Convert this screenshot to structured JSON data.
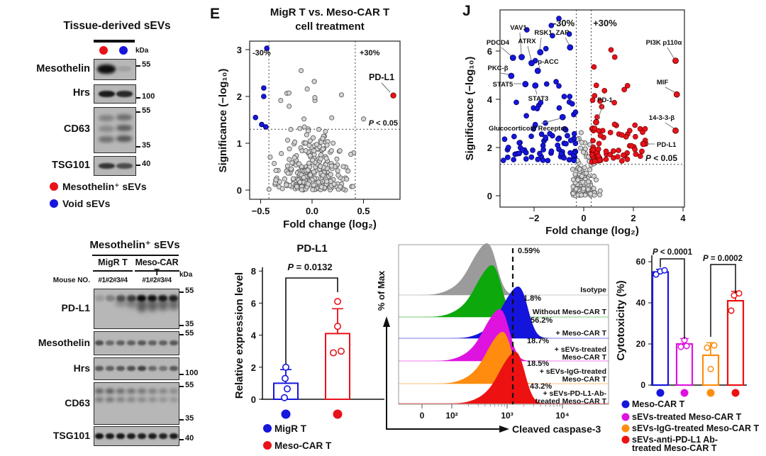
{
  "colors": {
    "red": "#e8121a",
    "blue": "#1616dd",
    "magenta": "#df13df",
    "orange": "#ff8c0e",
    "green": "#0ca80c",
    "gray_dot": "#d4d4d4",
    "gray_hist": "#9b9b9b",
    "dark": "#111111"
  },
  "panels": {
    "e_label": "E",
    "j_label": "J"
  },
  "blot_top": {
    "title": "Tissue-derived sEVs",
    "kda": "kDa",
    "lane_dot_colors": [
      "#e8121a",
      "#1616dd"
    ],
    "rows": [
      {
        "label": "Mesothelin",
        "markers": [
          "55"
        ]
      },
      {
        "label": "Hrs",
        "markers": [
          "100"
        ]
      },
      {
        "label": "CD63",
        "markers": [
          "55",
          "35"
        ]
      },
      {
        "label": "TSG101",
        "markers": [
          "40"
        ]
      }
    ],
    "legend": [
      {
        "label": "Mesothelin⁺ sEVs",
        "color": "#e8121a"
      },
      {
        "label": "Void sEVs",
        "color": "#1616dd"
      }
    ]
  },
  "blot_bottom": {
    "title": "Mesothelin⁺ sEVs",
    "groups": [
      "MigR T",
      "Meso-CAR T"
    ],
    "mouse_label": "Mouse NO.",
    "lane_sets": [
      "#1#2#3#4",
      "#1#2#3#4"
    ],
    "kda": "kDa",
    "rows": [
      {
        "label": "PD-L1",
        "markers": [
          "55",
          "35"
        ]
      },
      {
        "label": "Mesothelin",
        "markers": [
          "55"
        ]
      },
      {
        "label": "Hrs",
        "markers": [
          "100"
        ]
      },
      {
        "label": "CD63",
        "markers": [
          "55",
          "35"
        ]
      },
      {
        "label": "TSG101",
        "markers": [
          "40"
        ]
      }
    ]
  },
  "chart_data": [
    {
      "id": "volcano_e",
      "type": "scatter",
      "title_lines": [
        "MigR T vs. Meso-CAR T",
        "cell treatment"
      ],
      "xlabel": "Fold change (log₂)",
      "ylabel": "Significance (−log₁₀)",
      "xticks": [
        "−0.5",
        "0.0",
        "0.5"
      ],
      "xtick_vals": [
        -0.5,
        0,
        0.5
      ],
      "yticks": [
        0,
        1,
        2,
        3
      ],
      "xlim": [
        -0.61,
        0.86
      ],
      "ylim": [
        0,
        3.2
      ],
      "thresholds": {
        "x": [
          -0.42,
          0.42
        ],
        "y": 1.3
      },
      "labels": {
        "down": "-30%",
        "up": "+30%",
        "p": "P < 0.05"
      },
      "grid": false,
      "legend_position": "none",
      "blue_points": [
        [
          -0.44,
          3.03
        ],
        [
          -0.47,
          2.18
        ],
        [
          -0.47,
          2.0
        ],
        [
          -0.55,
          1.55
        ],
        [
          -0.49,
          1.4
        ],
        [
          -0.45,
          1.35
        ]
      ],
      "red_points": [
        {
          "label": "PD-L1",
          "x": 0.79,
          "y": 2.02
        }
      ],
      "background": {
        "count": 300,
        "seed": 11
      }
    },
    {
      "id": "volcano_j",
      "type": "scatter",
      "xlabel": "Fold change (log₂)",
      "ylabel": "Significance (−log₁₀)",
      "xticks": [
        "−2",
        "0",
        "2",
        "4"
      ],
      "xtick_vals": [
        -2,
        0,
        2,
        4
      ],
      "yticks": [
        0,
        2,
        4,
        6
      ],
      "xlim": [
        -3.4,
        4.05
      ],
      "ylim": [
        -0.5,
        7.7
      ],
      "thresholds": {
        "x": [
          -0.3,
          0.3
        ],
        "y": 1.3
      },
      "labels": {
        "down": "-30%",
        "up": "+30%",
        "p": "P < 0.05"
      },
      "grid": false,
      "legend_position": "none",
      "down_regulated": [
        {
          "label": "VAV1",
          "x": -2.5,
          "y": 5.75
        },
        {
          "label": "RSK1",
          "x": -1.75,
          "y": 5.95
        },
        {
          "label": "ZAP",
          "x": -0.55,
          "y": 6.15
        },
        {
          "label": "PDCD4",
          "x": -2.85,
          "y": 5.72
        },
        {
          "label": "ATRX",
          "x": -2.1,
          "y": 5.5
        },
        {
          "label": "p-ACC",
          "x": -1.85,
          "y": 5.18
        },
        {
          "label": "PKC-β",
          "x": -2.92,
          "y": 4.97
        },
        {
          "label": "STAT5",
          "x": -2.35,
          "y": 4.63
        },
        {
          "label": "STAT3",
          "x": -1.95,
          "y": 4.57
        },
        {
          "label": "Glucocorticoid Receptor",
          "x": -0.85,
          "y": 3.26
        }
      ],
      "up_regulated": [
        {
          "label": "PI3K p110α",
          "x": 3.7,
          "y": 5.6
        },
        {
          "label": "MIF",
          "x": 3.75,
          "y": 4.2
        },
        {
          "label": "14-3-3-β",
          "x": 3.7,
          "y": 2.7
        },
        {
          "label": "PD-L1",
          "x": 2.4,
          "y": 2.15
        },
        {
          "label": "PD-1",
          "x": 0.5,
          "y": 3.05
        }
      ],
      "blue_extra": [
        [
          -1.0,
          7.35
        ],
        [
          -2.29,
          6.88
        ]
      ],
      "red_extra": [
        [
          1.1,
          6.05
        ],
        [
          1.25,
          5.75
        ]
      ],
      "background": {
        "gray": 135,
        "blue": 88,
        "red": 80,
        "seeds": [
          9,
          3,
          5
        ]
      }
    },
    {
      "id": "pdl1_expression",
      "type": "bar",
      "title": "PD-L1",
      "p_label": "P = 0.0132",
      "ylabel": "Relative expression level",
      "ylim": [
        0,
        8
      ],
      "yticks": [
        0,
        2,
        4,
        6,
        8
      ],
      "categories": [
        "MigR T",
        "Meso-CAR T"
      ],
      "series": [
        {
          "name": "MigR T",
          "color": "#1616dd",
          "mean": 1.0,
          "err": [
            0.15,
            1.85
          ],
          "points": [
            0.1,
            0.65,
            1.3,
            2.0
          ]
        },
        {
          "name": "Meso-CAR T",
          "color": "#e8121a",
          "mean": 4.1,
          "err": [
            2.5,
            5.65
          ],
          "points": [
            2.9,
            3.0,
            4.55,
            6.1
          ]
        }
      ],
      "legend": [
        {
          "label": "MigR T",
          "color": "#1616dd"
        },
        {
          "label": "Meso-CAR T",
          "color": "#e8121a"
        }
      ]
    },
    {
      "id": "cleaved_caspase3_histograms",
      "type": "area",
      "xlabel": "Cleaved caspase-3",
      "ylabel": "% of Max",
      "xticks": [
        "0",
        "10²",
        "10³",
        "10⁴"
      ],
      "gate_note": "dashed gate line near 10³",
      "series": [
        {
          "name_lines": [
            "Isotype"
          ],
          "pct": "0.59%",
          "color": "#9b9b9b"
        },
        {
          "name_lines": [
            "Without Meso-CAR T"
          ],
          "pct": "1.8%",
          "color": "#0ca80c"
        },
        {
          "name_lines": [
            "+ Meso-CAR T"
          ],
          "pct": "56.2%",
          "color": "#1414dd"
        },
        {
          "name_lines": [
            "+ sEVs-treated",
            "Meso-CAR T"
          ],
          "pct": "18.7%",
          "color": "#df13df"
        },
        {
          "name_lines": [
            "+ sEVs-IgG-treated",
            "Meso-CAR T"
          ],
          "pct": "18.5%",
          "color": "#ff8c0e"
        },
        {
          "name_lines": [
            "+ sEVs-PD-L1-Ab-",
            "treated Meso-CAR T"
          ],
          "pct": "43.2%",
          "color": "#ee1111"
        }
      ]
    },
    {
      "id": "cytotoxicity",
      "type": "bar",
      "ylabel": "Cytotoxicity (%)",
      "ylim": [
        0,
        60
      ],
      "yticks": [
        0,
        20,
        40,
        60
      ],
      "series": [
        {
          "name": "Meso-CAR T",
          "color": "#1616dd",
          "mean": 55,
          "err": [
            54,
            56.3
          ],
          "points": [
            53.8,
            55.3,
            55.8
          ]
        },
        {
          "name": "sEVs-treated Meso-CAR T",
          "color": "#df13df",
          "mean": 20,
          "err": [
            17.6,
            22.6
          ],
          "points": [
            18.6,
            19,
            21.8
          ]
        },
        {
          "name": "sEVs-IgG-treated Meso-CAR T",
          "color": "#ff8c0e",
          "mean": 14.5,
          "err": [
            8.4,
            20.6
          ],
          "points": [
            7.8,
            18.2,
            19.3
          ]
        },
        {
          "name": "sEVs-anti-PD-L1 Ab-treated Meso-CAR T",
          "color": "#ee1111",
          "mean": 41,
          "err": [
            36.4,
            45.6
          ],
          "points": [
            36.2,
            43.6,
            44.6
          ]
        }
      ],
      "brackets": [
        {
          "label": "P < 0.0001",
          "from": 0,
          "to": 1
        },
        {
          "label": "P = 0.0002",
          "from": 2,
          "to": 3
        }
      ],
      "legend": [
        {
          "lines": [
            "Meso-CAR T"
          ],
          "color": "#1616dd"
        },
        {
          "lines": [
            "sEVs-treated Meso-CAR T"
          ],
          "color": "#df13df"
        },
        {
          "lines": [
            "sEVs-IgG-treated Meso-CAR T"
          ],
          "color": "#ff8c0e"
        },
        {
          "lines": [
            "sEVs-anti-PD-L1 Ab-",
            "treated Meso-CAR T"
          ],
          "color": "#ee1111"
        }
      ]
    }
  ]
}
